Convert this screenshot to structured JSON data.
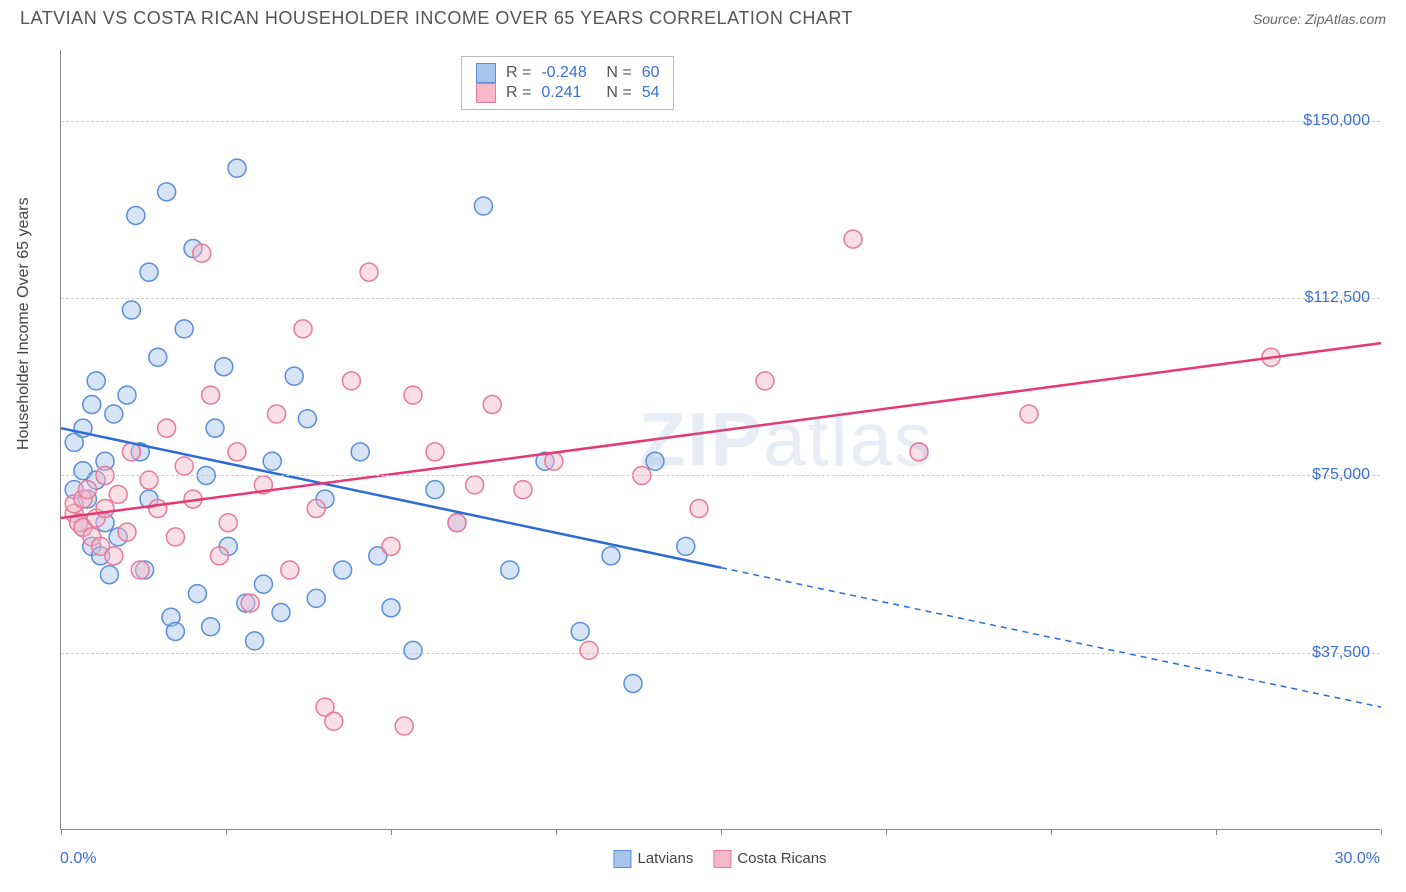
{
  "header": {
    "title": "LATVIAN VS COSTA RICAN HOUSEHOLDER INCOME OVER 65 YEARS CORRELATION CHART",
    "source": "Source: ZipAtlas.com"
  },
  "chart": {
    "type": "scatter",
    "ylabel": "Householder Income Over 65 years",
    "xlim": [
      0,
      30
    ],
    "ylim": [
      0,
      165000
    ],
    "xaxis": {
      "min_label": "0.0%",
      "max_label": "30.0%"
    },
    "xticks": [
      0,
      3.75,
      7.5,
      11.25,
      15,
      18.75,
      22.5,
      26.25,
      30
    ],
    "gridlines": [
      {
        "y": 37500,
        "label": "$37,500"
      },
      {
        "y": 75000,
        "label": "$75,000"
      },
      {
        "y": 112500,
        "label": "$112,500"
      },
      {
        "y": 150000,
        "label": "$150,000"
      }
    ],
    "background_color": "#ffffff",
    "grid_color": "#cccccc",
    "axis_color": "#888888",
    "tick_label_color": "#3b6fd4",
    "marker_radius": 9,
    "marker_opacity": 0.45,
    "line_width": 2.5,
    "watermark": "ZIPatlas",
    "watermark_color": "rgba(120,150,200,0.18)"
  },
  "series": [
    {
      "name": "Latvians",
      "color_fill": "#a7c4ec",
      "color_stroke": "#5a8fd8",
      "line_color": "#2d6cd4",
      "R": "-0.248",
      "N": "60",
      "regression": {
        "x1": 0,
        "y1": 85000,
        "x2_solid": 15,
        "y2_solid": 55500,
        "x2": 30,
        "y2": 26000
      },
      "points": [
        [
          0.3,
          82000
        ],
        [
          0.3,
          72000
        ],
        [
          0.5,
          85000
        ],
        [
          0.5,
          64000
        ],
        [
          0.5,
          76000
        ],
        [
          0.6,
          70000
        ],
        [
          0.7,
          60000
        ],
        [
          0.7,
          90000
        ],
        [
          0.8,
          95000
        ],
        [
          0.8,
          74000
        ],
        [
          0.9,
          58000
        ],
        [
          1.0,
          65000
        ],
        [
          1.0,
          78000
        ],
        [
          1.1,
          54000
        ],
        [
          1.2,
          88000
        ],
        [
          1.3,
          62000
        ],
        [
          1.5,
          92000
        ],
        [
          1.6,
          110000
        ],
        [
          1.7,
          130000
        ],
        [
          1.8,
          80000
        ],
        [
          1.9,
          55000
        ],
        [
          2.0,
          118000
        ],
        [
          2.0,
          70000
        ],
        [
          2.2,
          100000
        ],
        [
          2.4,
          135000
        ],
        [
          2.5,
          45000
        ],
        [
          2.6,
          42000
        ],
        [
          2.8,
          106000
        ],
        [
          3.0,
          123000
        ],
        [
          3.1,
          50000
        ],
        [
          3.3,
          75000
        ],
        [
          3.4,
          43000
        ],
        [
          3.5,
          85000
        ],
        [
          3.7,
          98000
        ],
        [
          3.8,
          60000
        ],
        [
          4.0,
          140000
        ],
        [
          4.2,
          48000
        ],
        [
          4.4,
          40000
        ],
        [
          4.6,
          52000
        ],
        [
          4.8,
          78000
        ],
        [
          5.0,
          46000
        ],
        [
          5.3,
          96000
        ],
        [
          5.6,
          87000
        ],
        [
          5.8,
          49000
        ],
        [
          6.0,
          70000
        ],
        [
          6.4,
          55000
        ],
        [
          6.8,
          80000
        ],
        [
          7.2,
          58000
        ],
        [
          7.5,
          47000
        ],
        [
          8.0,
          38000
        ],
        [
          8.5,
          72000
        ],
        [
          9.0,
          65000
        ],
        [
          9.6,
          132000
        ],
        [
          10.2,
          55000
        ],
        [
          11.0,
          78000
        ],
        [
          11.8,
          42000
        ],
        [
          12.5,
          58000
        ],
        [
          13.0,
          31000
        ],
        [
          13.5,
          78000
        ],
        [
          14.2,
          60000
        ]
      ]
    },
    {
      "name": "Costa Ricans",
      "color_fill": "#f4b8c8",
      "color_stroke": "#e77a9a",
      "line_color": "#e63872",
      "R": "0.241",
      "N": "54",
      "regression": {
        "x1": 0,
        "y1": 66000,
        "x2_solid": 30,
        "y2_solid": 103000,
        "x2": 30,
        "y2": 103000
      },
      "points": [
        [
          0.3,
          67000
        ],
        [
          0.3,
          69000
        ],
        [
          0.4,
          65000
        ],
        [
          0.5,
          64000
        ],
        [
          0.5,
          70000
        ],
        [
          0.6,
          72000
        ],
        [
          0.7,
          62000
        ],
        [
          0.8,
          66000
        ],
        [
          0.9,
          60000
        ],
        [
          1.0,
          75000
        ],
        [
          1.0,
          68000
        ],
        [
          1.2,
          58000
        ],
        [
          1.3,
          71000
        ],
        [
          1.5,
          63000
        ],
        [
          1.6,
          80000
        ],
        [
          1.8,
          55000
        ],
        [
          2.0,
          74000
        ],
        [
          2.2,
          68000
        ],
        [
          2.4,
          85000
        ],
        [
          2.6,
          62000
        ],
        [
          2.8,
          77000
        ],
        [
          3.0,
          70000
        ],
        [
          3.2,
          122000
        ],
        [
          3.4,
          92000
        ],
        [
          3.6,
          58000
        ],
        [
          3.8,
          65000
        ],
        [
          4.0,
          80000
        ],
        [
          4.3,
          48000
        ],
        [
          4.6,
          73000
        ],
        [
          4.9,
          88000
        ],
        [
          5.2,
          55000
        ],
        [
          5.5,
          106000
        ],
        [
          5.8,
          68000
        ],
        [
          6.0,
          26000
        ],
        [
          6.2,
          23000
        ],
        [
          6.6,
          95000
        ],
        [
          7.0,
          118000
        ],
        [
          7.5,
          60000
        ],
        [
          7.8,
          22000
        ],
        [
          8.0,
          92000
        ],
        [
          8.5,
          80000
        ],
        [
          9.0,
          65000
        ],
        [
          9.4,
          73000
        ],
        [
          9.8,
          90000
        ],
        [
          10.5,
          72000
        ],
        [
          11.2,
          78000
        ],
        [
          12.0,
          38000
        ],
        [
          13.2,
          75000
        ],
        [
          14.5,
          68000
        ],
        [
          16.0,
          95000
        ],
        [
          18.0,
          125000
        ],
        [
          19.5,
          80000
        ],
        [
          22.0,
          88000
        ],
        [
          27.5,
          100000
        ]
      ]
    }
  ],
  "legend": {
    "series": [
      {
        "label": "Latvians",
        "fill": "#a7c4ec",
        "stroke": "#5a8fd8"
      },
      {
        "label": "Costa Ricans",
        "fill": "#f4b8c8",
        "stroke": "#e77a9a"
      }
    ]
  }
}
